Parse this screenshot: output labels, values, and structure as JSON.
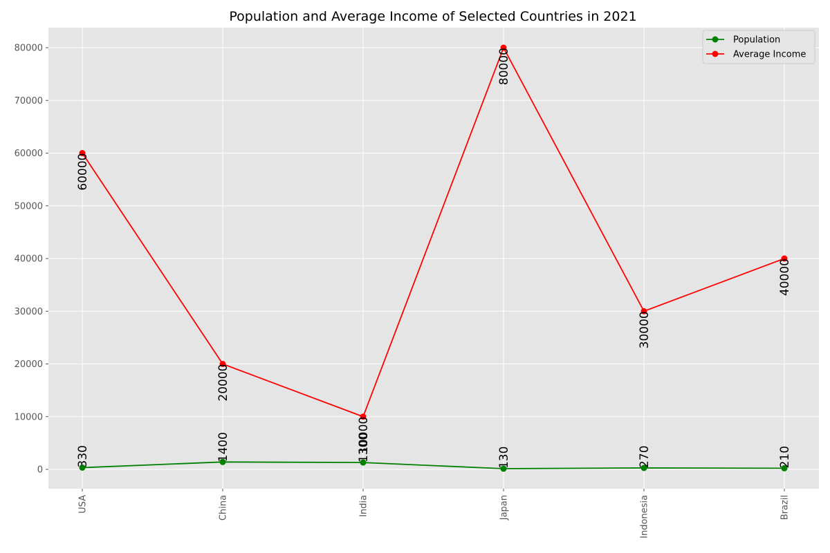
{
  "chart_data": {
    "type": "line",
    "title": "Population and Average Income of Selected Countries in 2021",
    "xlabel": "",
    "ylabel": "",
    "categories": [
      "USA",
      "China",
      "India",
      "Japan",
      "Indonesia",
      "Brazil"
    ],
    "series": [
      {
        "name": "Population",
        "color": "#008000",
        "values": [
          330,
          1400,
          1300,
          130,
          270,
          210
        ]
      },
      {
        "name": "Average Income",
        "color": "#ff0000",
        "values": [
          60000,
          20000,
          10000,
          80000,
          30000,
          40000
        ]
      }
    ],
    "ylim": [
      -3700,
      84000
    ],
    "yticks": [
      0,
      10000,
      20000,
      30000,
      40000,
      50000,
      60000,
      70000,
      80000
    ],
    "grid": true,
    "legend": "top-right"
  }
}
